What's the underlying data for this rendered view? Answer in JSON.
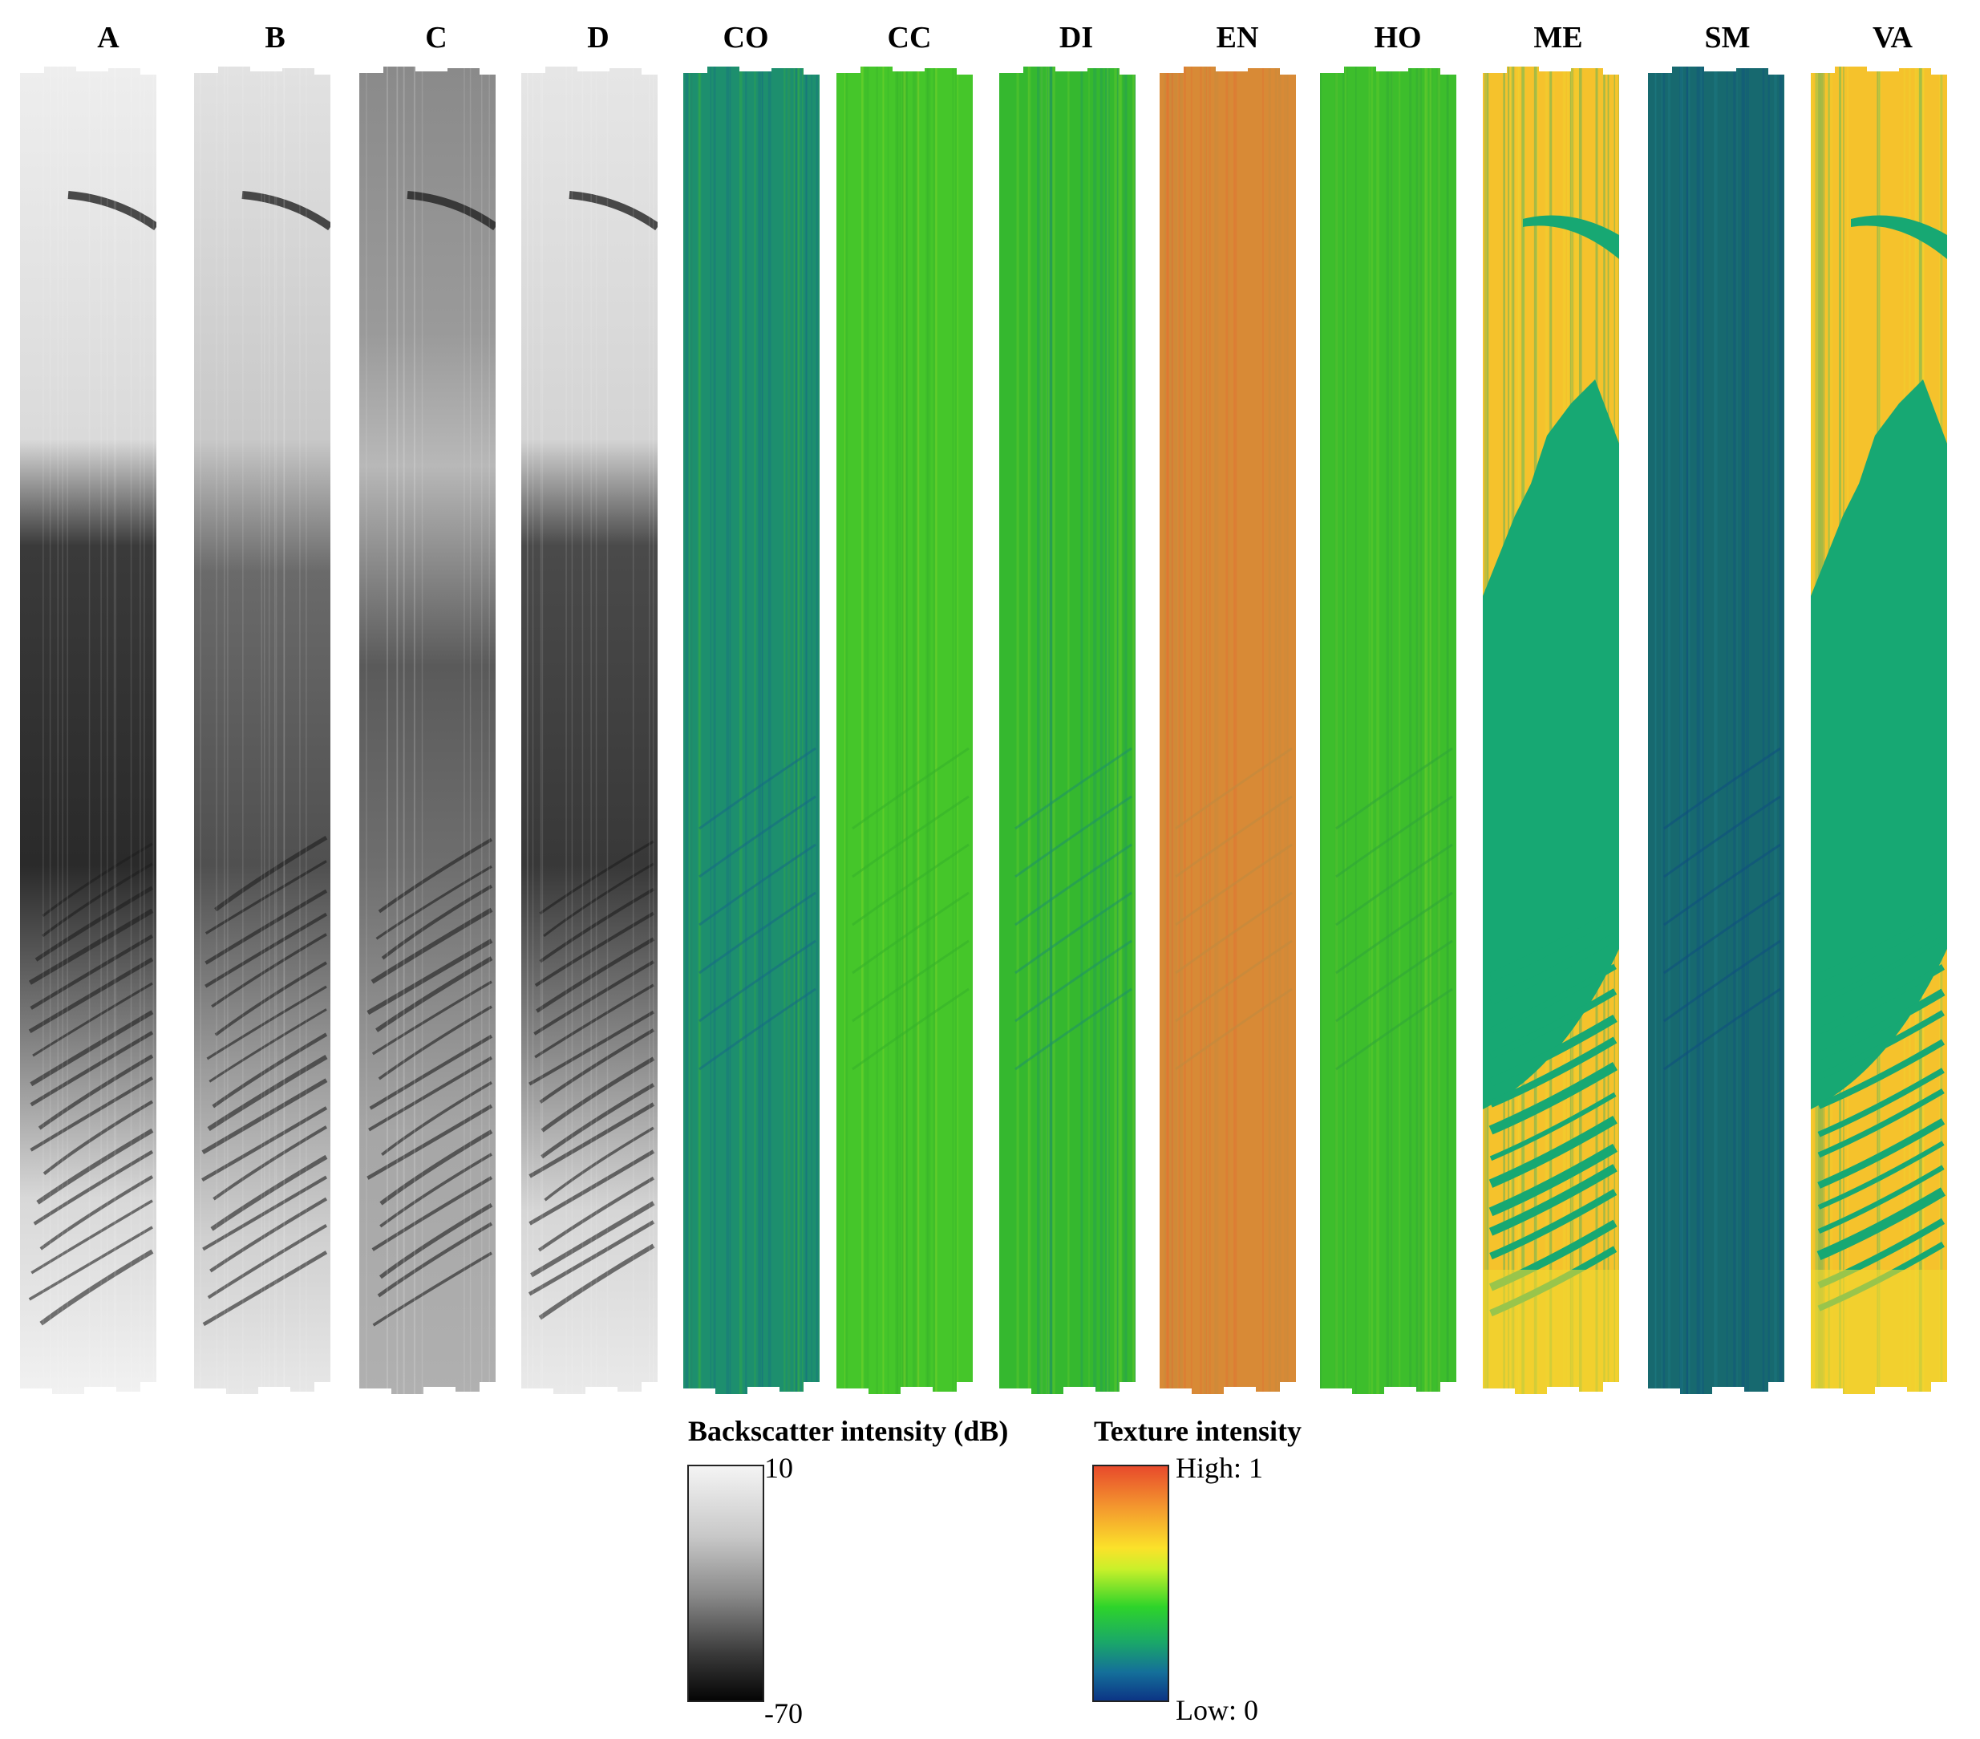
{
  "panels": [
    {
      "label": "A",
      "kind": "gray",
      "variant": "a"
    },
    {
      "label": "B",
      "kind": "gray",
      "variant": "b"
    },
    {
      "label": "C",
      "kind": "gray",
      "variant": "c"
    },
    {
      "label": "D",
      "kind": "gray",
      "variant": "d"
    },
    {
      "label": "CO",
      "kind": "color",
      "base": "#1d8f6e",
      "alt": "#3cb43a",
      "feature": "#166a86"
    },
    {
      "label": "CC",
      "kind": "color",
      "base": "#45c62a",
      "alt": "#8fd92a",
      "feature": "#34b02a"
    },
    {
      "label": "DI",
      "kind": "color",
      "base": "#35b82f",
      "alt": "#6fcf2a",
      "feature": "#1e8f6a"
    },
    {
      "label": "EN",
      "kind": "color",
      "base": "#d88a36",
      "alt": "#e46a30",
      "feature": "#bf8a40"
    },
    {
      "label": "HO",
      "kind": "color",
      "base": "#3dbe2c",
      "alt": "#6fd02c",
      "feature": "#2fa43a"
    },
    {
      "label": "ME",
      "kind": "color",
      "base": "#f5c22c",
      "alt": "#f0d830",
      "feature": "#17a873"
    },
    {
      "label": "SM",
      "kind": "color",
      "base": "#17696f",
      "alt": "#1e7f86",
      "feature": "#0f4f80"
    },
    {
      "label": "VA",
      "kind": "color",
      "base": "#f5c22c",
      "alt": "#f0d830",
      "feature": "#17a873"
    }
  ],
  "legends": {
    "backscatter": {
      "title": "Backscatter intensity (dB)",
      "max": "10",
      "min": "-70",
      "colors": [
        "#f4f4f4",
        "#050505"
      ]
    },
    "texture": {
      "title": "Texture intensity",
      "max": "High: 1",
      "min": "Low: 0",
      "colors": [
        "#e84a2c",
        "#f49a2e",
        "#fbe22a",
        "#2ed42a",
        "#146f9a",
        "#0c3585"
      ]
    }
  }
}
